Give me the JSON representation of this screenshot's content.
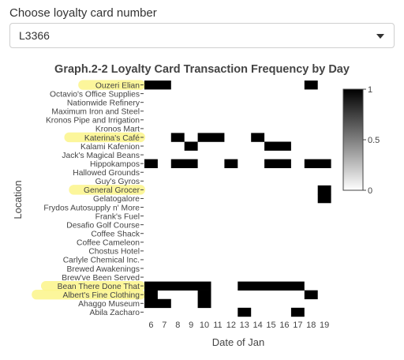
{
  "control": {
    "label": "Choose loyalty card number",
    "selected": "L3366"
  },
  "colors": {
    "highlight": "#fbf58a",
    "cell": "#000000",
    "text": "#444444"
  },
  "chart_data": {
    "type": "heatmap",
    "title": "Graph.2-2 Loyalty Card Transaction Frequency by Day",
    "xlabel": "Date of Jan",
    "ylabel": "Location",
    "x": [
      6,
      7,
      8,
      9,
      10,
      11,
      12,
      13,
      14,
      15,
      16,
      17,
      18,
      19
    ],
    "y": [
      "Ouzeri Elian",
      "Octavio's Office Supplies",
      "Nationwide Refinery",
      "Maximum Iron and Steel",
      "Kronos Pipe and Irrigation",
      "Kronos Mart",
      "Katerina's Café",
      "Kalami Kafenion",
      "Jack's Magical Beans",
      "Hippokampos",
      "Hallowed Grounds",
      "Guy's Gyros",
      "General Grocer",
      "Gelatogalore",
      "Frydos Autosupply n' More",
      "Frank's Fuel",
      "Desafio Golf Course",
      "Coffee Shack",
      "Coffee Cameleon",
      "Chostus Hotel",
      "Carlyle Chemical Inc.",
      "Brewed Awakenings",
      "Brew've Been Served",
      "Bean There Done That",
      "Albert's Fine Clothing",
      "Ahaggo Museum",
      "Abila Zacharo"
    ],
    "highlighted": [
      "Ouzeri Elian",
      "Katerina's Café",
      "General Grocer",
      "Bean There Done That",
      "Albert's Fine Clothing"
    ],
    "cells": [
      {
        "y": "Ouzeri Elian",
        "x": [
          6,
          7,
          18
        ]
      },
      {
        "y": "Katerina's Café",
        "x": [
          8,
          10,
          11,
          14
        ]
      },
      {
        "y": "Kalami Kafenion",
        "x": [
          9,
          15,
          16
        ]
      },
      {
        "y": "Hippokampos",
        "x": [
          6,
          8,
          9,
          12,
          15,
          16,
          18,
          19
        ]
      },
      {
        "y": "General Grocer",
        "x": [
          19
        ]
      },
      {
        "y": "Gelatogalore",
        "x": [
          19
        ]
      },
      {
        "y": "Bean There Done That",
        "x": [
          6,
          7,
          8,
          9,
          10,
          13,
          14,
          15,
          16,
          17
        ]
      },
      {
        "y": "Albert's Fine Clothing",
        "x": [
          6,
          10,
          18
        ]
      },
      {
        "y": "Ahaggo Museum",
        "x": [
          6,
          7,
          10
        ]
      },
      {
        "y": "Abila Zacharo",
        "x": [
          13,
          17
        ]
      }
    ],
    "colorbar": {
      "ticks": [
        "0",
        "0.5",
        "1"
      ],
      "range": [
        0,
        1
      ],
      "low_color": "#ffffff",
      "high_color": "#000000"
    }
  }
}
